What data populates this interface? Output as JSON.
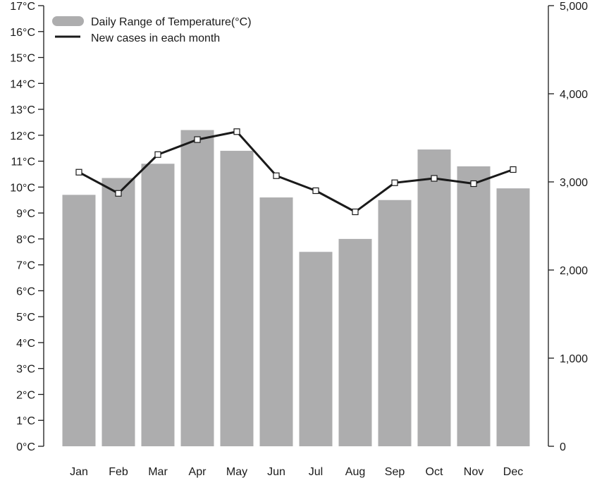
{
  "chart_data": {
    "type": "bar",
    "categories": [
      "Jan",
      "Feb",
      "Mar",
      "Apr",
      "May",
      "Jun",
      "Jul",
      "Aug",
      "Sep",
      "Oct",
      "Nov",
      "Dec"
    ],
    "series": [
      {
        "name": "Daily Range of Temperature(°C)",
        "type": "bar",
        "axis": "left",
        "values": [
          9.7,
          10.35,
          10.9,
          12.2,
          11.4,
          9.6,
          7.5,
          8.0,
          9.5,
          11.45,
          10.8,
          9.95
        ]
      },
      {
        "name": "New cases in each month",
        "type": "line",
        "axis": "right",
        "values": [
          3110,
          2870,
          3310,
          3480,
          3570,
          3070,
          2900,
          2660,
          2990,
          3040,
          2980,
          3140
        ]
      }
    ],
    "y_left": {
      "ylim": [
        0,
        17
      ],
      "ticks": [
        0,
        1,
        2,
        3,
        4,
        5,
        6,
        7,
        8,
        9,
        10,
        11,
        12,
        13,
        14,
        15,
        16,
        17
      ],
      "tick_labels": [
        "0°C",
        "1°C",
        "2°C",
        "3°C",
        "4°C",
        "5°C",
        "6°C",
        "7°C",
        "8°C",
        "9°C",
        "10°C",
        "11°C",
        "12°C",
        "13°C",
        "14°C",
        "15°C",
        "16°C",
        "17°C"
      ]
    },
    "y_right": {
      "ylim": [
        0,
        5000
      ],
      "ticks": [
        0,
        1000,
        2000,
        3000,
        4000,
        5000
      ],
      "tick_labels": [
        "0",
        "1,000",
        "2,000",
        "3,000",
        "4,000",
        "5,000"
      ]
    },
    "legend_position": "top-left",
    "grid": false,
    "colors": {
      "bar": "#adadae",
      "line": "#1a1a1a",
      "marker_fill": "#ffffff",
      "axis": "#1a1a1a"
    }
  }
}
